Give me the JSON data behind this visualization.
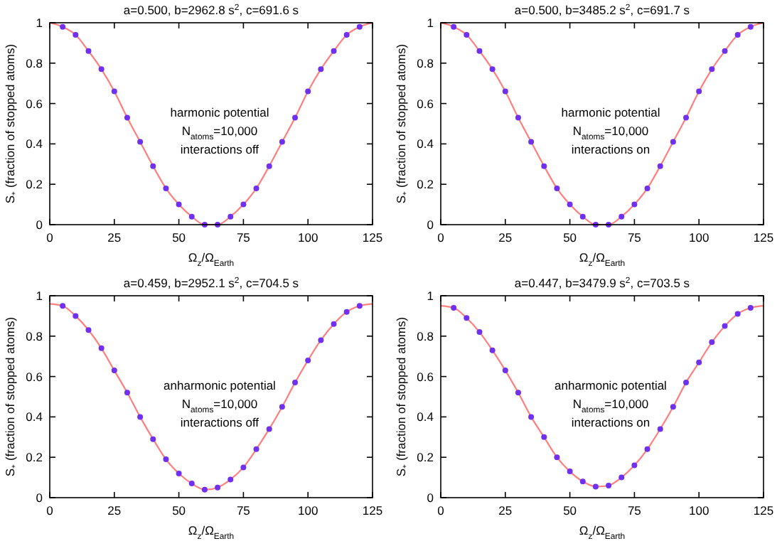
{
  "chart_data": [
    {
      "type": "scatter",
      "title": "a=0.500, b=2962.8 s$^{2}$, c=691.6 s",
      "xlabel": "Ω$_{z}$/Ω$_{Earth}$",
      "ylabel": "S₊ (fraction of stopped atoms)",
      "xlim": [
        0,
        125
      ],
      "ylim": [
        0,
        1
      ],
      "xticks": [
        0,
        25,
        50,
        75,
        100,
        125
      ],
      "yticks": [
        0,
        0.2,
        0.4,
        0.6,
        0.8,
        1
      ],
      "annotations": [
        "harmonic potential",
        "N$_{atoms}$=10,000",
        "interactions off"
      ],
      "series": [
        {
          "type": "line",
          "color": "#ff7f7f",
          "x": [
            0,
            5,
            10,
            15,
            20,
            25,
            30,
            35,
            40,
            45,
            50,
            55,
            60,
            65,
            70,
            75,
            80,
            85,
            90,
            95,
            100,
            105,
            110,
            115,
            120,
            125
          ],
          "values": [
            1,
            0.98,
            0.94,
            0.86,
            0.77,
            0.66,
            0.53,
            0.41,
            0.29,
            0.18,
            0.1,
            0.04,
            0.0,
            0.0,
            0.04,
            0.1,
            0.18,
            0.29,
            0.41,
            0.53,
            0.66,
            0.77,
            0.86,
            0.94,
            0.98,
            1
          ]
        },
        {
          "color": "#7030f0",
          "marker": "circle",
          "x": [
            5,
            10,
            15,
            20,
            25,
            30,
            35,
            40,
            45,
            50,
            55,
            60,
            65,
            70,
            75,
            80,
            85,
            90,
            95,
            100,
            105,
            110,
            115,
            120
          ],
          "values": [
            0.98,
            0.94,
            0.86,
            0.77,
            0.66,
            0.53,
            0.41,
            0.29,
            0.18,
            0.1,
            0.04,
            0.0,
            0.0,
            0.04,
            0.1,
            0.18,
            0.29,
            0.41,
            0.53,
            0.66,
            0.77,
            0.86,
            0.94,
            0.98
          ]
        }
      ]
    },
    {
      "type": "scatter",
      "title": "a=0.500, b=3485.2 s$^{2}$, c=691.7 s",
      "xlabel": "Ω$_{z}$/Ω$_{Earth}$",
      "ylabel": "S₊ (fraction of stopped atoms)",
      "xlim": [
        0,
        125
      ],
      "ylim": [
        0,
        1
      ],
      "xticks": [
        0,
        25,
        50,
        75,
        100,
        125
      ],
      "yticks": [
        0,
        0.2,
        0.4,
        0.6,
        0.8,
        1
      ],
      "annotations": [
        "harmonic potential",
        "N$_{atoms}$=10,000",
        "interactions on"
      ],
      "series": [
        {
          "type": "line",
          "color": "#ff7f7f",
          "x": [
            0,
            5,
            10,
            15,
            20,
            25,
            30,
            35,
            40,
            45,
            50,
            55,
            60,
            65,
            70,
            75,
            80,
            85,
            90,
            95,
            100,
            105,
            110,
            115,
            120,
            125
          ],
          "values": [
            1,
            0.98,
            0.94,
            0.86,
            0.77,
            0.66,
            0.53,
            0.41,
            0.29,
            0.18,
            0.1,
            0.04,
            0.0,
            0.0,
            0.04,
            0.1,
            0.18,
            0.29,
            0.41,
            0.53,
            0.66,
            0.77,
            0.86,
            0.94,
            0.98,
            1
          ]
        },
        {
          "color": "#7030f0",
          "marker": "circle",
          "x": [
            5,
            10,
            15,
            20,
            25,
            30,
            35,
            40,
            45,
            50,
            55,
            60,
            65,
            70,
            75,
            80,
            85,
            90,
            95,
            100,
            105,
            110,
            115,
            120
          ],
          "values": [
            0.98,
            0.94,
            0.86,
            0.77,
            0.66,
            0.53,
            0.41,
            0.29,
            0.18,
            0.1,
            0.04,
            0.0,
            0.0,
            0.04,
            0.1,
            0.18,
            0.29,
            0.41,
            0.53,
            0.66,
            0.77,
            0.86,
            0.94,
            0.98
          ]
        }
      ]
    },
    {
      "type": "scatter",
      "title": "a=0.459, b=2952.1 s$^{2}$, c=704.5 s",
      "xlabel": "Ω$_{z}$/Ω$_{Earth}$",
      "ylabel": "S₊ (fraction of stopped atoms)",
      "xlim": [
        0,
        125
      ],
      "ylim": [
        0,
        1
      ],
      "xticks": [
        0,
        25,
        50,
        75,
        100,
        125
      ],
      "yticks": [
        0,
        0.2,
        0.4,
        0.6,
        0.8,
        1
      ],
      "annotations": [
        "anharmonic potential",
        "N$_{atoms}$=10,000",
        "interactions off"
      ],
      "series": [
        {
          "type": "line",
          "color": "#ff7f7f",
          "x": [
            0,
            5,
            10,
            15,
            20,
            25,
            30,
            35,
            40,
            45,
            50,
            55,
            60,
            61,
            65,
            70,
            75,
            80,
            85,
            90,
            95,
            100,
            105,
            110,
            115,
            120,
            125
          ],
          "values": [
            0.96,
            0.95,
            0.9,
            0.83,
            0.74,
            0.63,
            0.52,
            0.4,
            0.29,
            0.19,
            0.12,
            0.07,
            0.04,
            0.04,
            0.05,
            0.09,
            0.15,
            0.24,
            0.34,
            0.45,
            0.57,
            0.68,
            0.78,
            0.86,
            0.92,
            0.95,
            0.96
          ]
        },
        {
          "color": "#7030f0",
          "marker": "circle",
          "x": [
            5,
            10,
            15,
            20,
            25,
            30,
            35,
            40,
            45,
            50,
            55,
            60,
            65,
            70,
            75,
            80,
            85,
            90,
            95,
            100,
            105,
            110,
            115,
            120
          ],
          "values": [
            0.95,
            0.9,
            0.83,
            0.74,
            0.63,
            0.52,
            0.4,
            0.29,
            0.19,
            0.12,
            0.07,
            0.04,
            0.05,
            0.09,
            0.15,
            0.24,
            0.34,
            0.45,
            0.57,
            0.68,
            0.78,
            0.86,
            0.92,
            0.95
          ]
        }
      ]
    },
    {
      "type": "scatter",
      "title": "a=0.447, b=3479.9 s$^{2}$, c=703.5 s",
      "xlabel": "Ω$_{z}$/Ω$_{Earth}$",
      "ylabel": "S₊ (fraction of stopped atoms)",
      "xlim": [
        0,
        125
      ],
      "ylim": [
        0,
        1
      ],
      "xticks": [
        0,
        25,
        50,
        75,
        100,
        125
      ],
      "yticks": [
        0,
        0.2,
        0.4,
        0.6,
        0.8,
        1
      ],
      "annotations": [
        "anharmonic potential",
        "N$_{atoms}$=10,000",
        "interactions on"
      ],
      "series": [
        {
          "type": "line",
          "color": "#ff7f7f",
          "x": [
            0,
            5,
            10,
            15,
            20,
            25,
            30,
            35,
            40,
            45,
            50,
            55,
            60,
            61,
            65,
            70,
            75,
            80,
            85,
            90,
            95,
            100,
            105,
            110,
            115,
            120,
            125
          ],
          "values": [
            0.95,
            0.94,
            0.89,
            0.82,
            0.73,
            0.63,
            0.52,
            0.4,
            0.3,
            0.2,
            0.13,
            0.08,
            0.055,
            0.055,
            0.06,
            0.1,
            0.16,
            0.24,
            0.34,
            0.45,
            0.57,
            0.67,
            0.77,
            0.85,
            0.91,
            0.94,
            0.95
          ]
        },
        {
          "color": "#7030f0",
          "marker": "circle",
          "x": [
            5,
            10,
            15,
            20,
            25,
            30,
            35,
            40,
            45,
            50,
            55,
            60,
            65,
            70,
            75,
            80,
            85,
            90,
            95,
            100,
            105,
            110,
            115,
            120
          ],
          "values": [
            0.94,
            0.89,
            0.82,
            0.73,
            0.63,
            0.52,
            0.4,
            0.3,
            0.2,
            0.13,
            0.08,
            0.055,
            0.06,
            0.1,
            0.16,
            0.24,
            0.34,
            0.45,
            0.57,
            0.67,
            0.77,
            0.85,
            0.91,
            0.94
          ]
        }
      ]
    }
  ]
}
